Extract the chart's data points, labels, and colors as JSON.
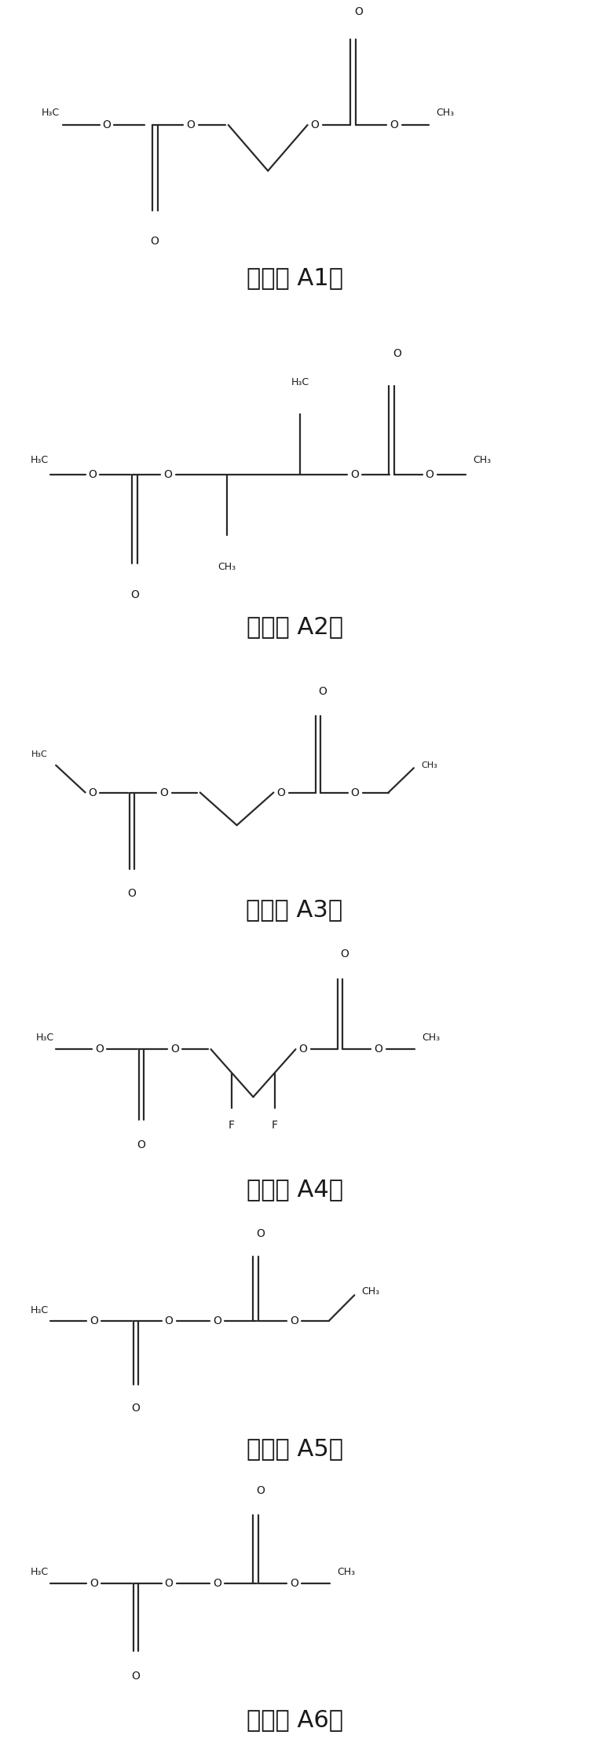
{
  "background_color": "#ffffff",
  "compounds": [
    {
      "label": "化合物 A1；"
    },
    {
      "label": "化合物 A2；"
    },
    {
      "label": "化合物 A3；"
    },
    {
      "label": "化合物 A4；"
    },
    {
      "label": "化合物 A5；"
    },
    {
      "label": "化合物 A6。"
    }
  ],
  "fig_width": 7.5,
  "fig_height": 22.41,
  "dpi": 100,
  "label_fontsize": 22,
  "line_width": 1.6,
  "line_color": "#2a2a2a",
  "text_color": "#1a1a1a"
}
